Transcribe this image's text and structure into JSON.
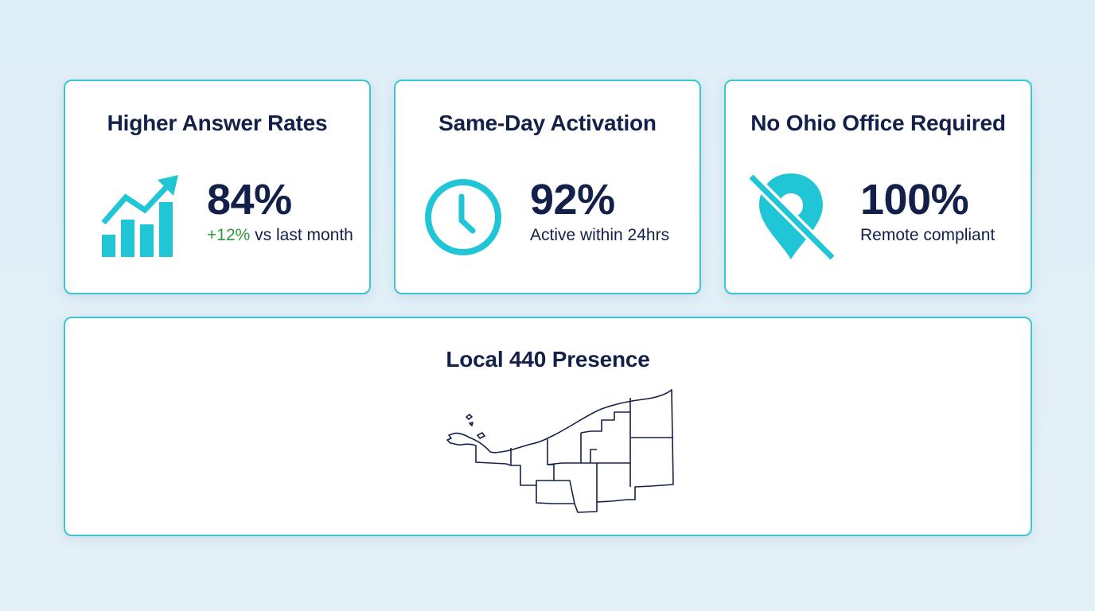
{
  "cards": [
    {
      "title": "Higher Answer Rates",
      "icon": "rising-bar-chart-icon",
      "value": "84%",
      "delta": "+12%",
      "subtext": "vs last month"
    },
    {
      "title": "Same-Day Activation",
      "icon": "clock-icon",
      "value": "92%",
      "subtext": "Active within 24hrs"
    },
    {
      "title": "No Ohio Office Required",
      "icon": "location-pin-slash-icon",
      "value": "100%",
      "subtext": "Remote compliant"
    }
  ],
  "presence": {
    "title": "Local 440 Presence",
    "map_icon": "northeast-ohio-counties-map"
  },
  "colors": {
    "accent": "#20c6d6",
    "border": "#3cc6cf",
    "text": "#13204a",
    "positive": "#2f9a3a",
    "background": "#e0eff7"
  }
}
